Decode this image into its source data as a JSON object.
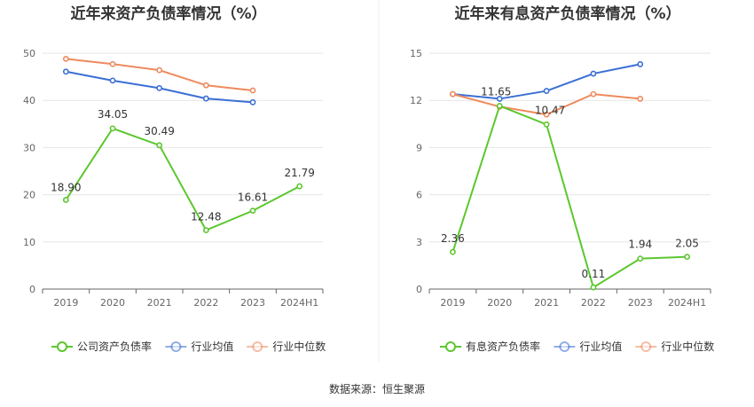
{
  "source_label": "数据来源：恒生聚源",
  "colors": {
    "company": "#5cc72e",
    "avg": "#3b6fd4",
    "median": "#ee8a5e",
    "grid": "#e6e6e6",
    "axis": "#666666"
  },
  "chart_data": [
    {
      "type": "line",
      "title": "近年来资产负债率情况（%）",
      "categories": [
        "2019",
        "2020",
        "2021",
        "2022",
        "2023",
        "2024H1"
      ],
      "ylim": [
        0,
        50
      ],
      "yticks": [
        0,
        10,
        20,
        30,
        40,
        50
      ],
      "grid": true,
      "legend_position": "bottom",
      "series": [
        {
          "name": "公司资产负债率",
          "color": "#5cc72e",
          "values": [
            18.9,
            34.05,
            30.49,
            12.48,
            16.61,
            21.79
          ],
          "labels": [
            "18.90",
            "34.05",
            "30.49",
            "12.48",
            "16.61",
            "21.79"
          ]
        },
        {
          "name": "行业均值",
          "color": "#3b6fd4",
          "values": [
            46.1,
            44.2,
            42.6,
            40.4,
            39.6,
            null
          ]
        },
        {
          "name": "行业中位数",
          "color": "#ee8a5e",
          "values": [
            48.8,
            47.7,
            46.4,
            43.2,
            42.1,
            null
          ]
        }
      ]
    },
    {
      "type": "line",
      "title": "近年来有息资产负债率情况（%）",
      "categories": [
        "2019",
        "2020",
        "2021",
        "2022",
        "2023",
        "2024H1"
      ],
      "ylim": [
        0,
        15
      ],
      "yticks": [
        0,
        3,
        6,
        9,
        12,
        15
      ],
      "grid": true,
      "legend_position": "bottom",
      "series": [
        {
          "name": "有息资产负债率",
          "color": "#5cc72e",
          "values": [
            2.36,
            11.65,
            10.47,
            0.11,
            1.94,
            2.05
          ],
          "labels": [
            "2.36",
            "11.65",
            "10.47",
            "0.11",
            "1.94",
            "2.05"
          ]
        },
        {
          "name": "行业均值",
          "color": "#3b6fd4",
          "values": [
            12.4,
            12.1,
            12.6,
            13.7,
            14.3,
            null
          ]
        },
        {
          "name": "行业中位数",
          "color": "#ee8a5e",
          "values": [
            12.4,
            11.6,
            11.1,
            12.4,
            12.1,
            null
          ]
        }
      ]
    }
  ]
}
